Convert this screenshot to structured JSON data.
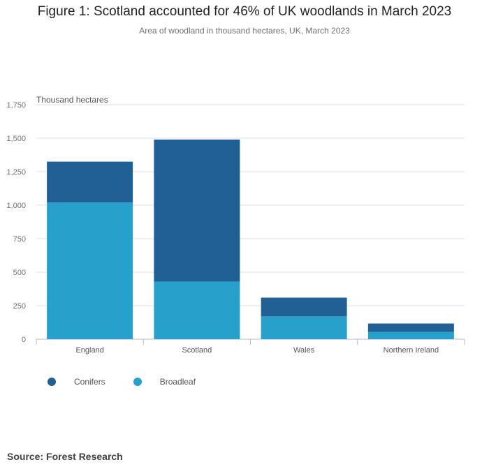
{
  "header": {
    "title": "Figure 1: Scotland accounted for 46% of UK woodlands in March 2023",
    "subtitle": "Area of woodland in thousand hectares, UK, March 2023"
  },
  "source": "Source: Forest Research",
  "colors": {
    "conifers": "#206095",
    "broadleaf": "#27a0cc",
    "grid": "#e2e2e3",
    "axis_text": "#707071"
  },
  "chart_data": {
    "type": "bar",
    "stacked": true,
    "ylabel": "Thousand hectares",
    "ylim": [
      0,
      1750
    ],
    "yticks": [
      0,
      250,
      500,
      750,
      1000,
      1250,
      1500,
      1750
    ],
    "ytick_labels": [
      "0",
      "250",
      "500",
      "750",
      "1,000",
      "1,250",
      "1,500",
      "1,750"
    ],
    "categories": [
      "England",
      "Scotland",
      "Wales",
      "Northern Ireland"
    ],
    "series": [
      {
        "name": "Broadleaf",
        "values": [
          1020,
          430,
          170,
          55
        ]
      },
      {
        "name": "Conifers",
        "values": [
          305,
          1060,
          140,
          62
        ]
      }
    ],
    "grid": true,
    "legend": "bottom-left"
  }
}
